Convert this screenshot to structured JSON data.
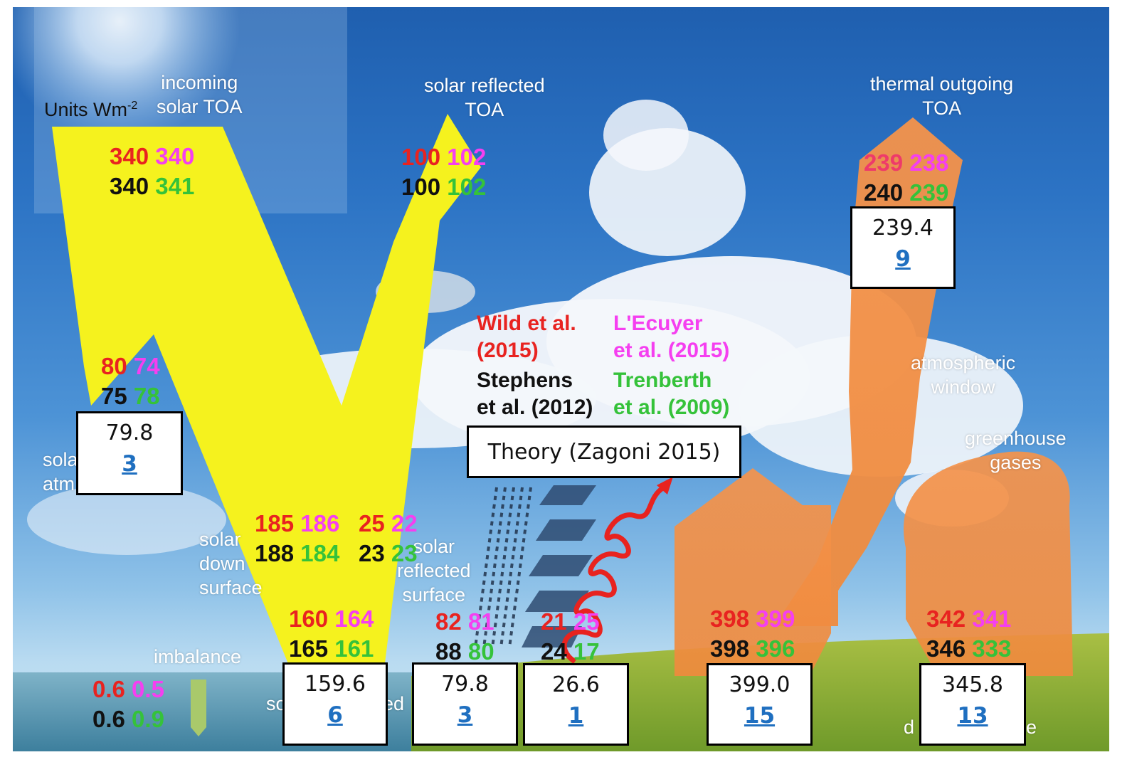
{
  "labels": {
    "units": "Units Wm",
    "units_sup": "-2",
    "incoming": "incoming\nsolar TOA",
    "solar_reflected_toa": "solar reflected\nTOA",
    "thermal_outgoing": "thermal outgoing\nTOA",
    "solar_atm": "sola\natm",
    "solar_down_surface": "solar\ndown\nsurface",
    "solar_reflected_surface": "solar\nreflected\nsurface",
    "imbalance": "imbalance",
    "atm_window": "atmospheric\nwindow",
    "greenhouse": "greenhouse\ngases",
    "bottom_so": "so",
    "bottom_ed": "ed",
    "bottom_d": "d",
    "bottom_e": "e"
  },
  "legend": {
    "wild": "Wild et al.\n(2015)",
    "lecuyer": "L'Ecuyer\net al. (2015)",
    "stephens": "Stephens\net al. (2012)",
    "trenberth": "Trenberth\net al. (2009)"
  },
  "theory_label": "Theory (Zagoni 2015)",
  "colors": {
    "wild": "#e82320",
    "lecuyer": "#f53ff0",
    "stephens": "#111111",
    "trenberth": "#35c23a",
    "solar_arrow": "#f5f21e",
    "thermal_arrow": "#f29048",
    "link": "#1f6fc0"
  },
  "flows": {
    "incoming": {
      "wild": "340",
      "lecuyer": "340",
      "stephens": "340",
      "trenberth": "341"
    },
    "reflected_toa": {
      "wild": "100",
      "lecuyer": "102",
      "stephens": "100",
      "trenberth": "102"
    },
    "thermal_toa": {
      "wild": "239",
      "lecuyer": "238",
      "stephens": "240",
      "trenberth": "239"
    },
    "solar_atm": {
      "wild": "80",
      "lecuyer": "74",
      "stephens": "75",
      "trenberth": "78"
    },
    "solar_down": {
      "wild": "185",
      "lecuyer": "186",
      "stephens": "188",
      "trenberth": "184"
    },
    "reflected_surface": {
      "wild": "25",
      "lecuyer": "22",
      "stephens": "23",
      "trenberth": "23"
    },
    "absorbed_surface": {
      "wild": "160",
      "lecuyer": "164",
      "stephens": "165",
      "trenberth": "161"
    },
    "evap": {
      "wild": "82",
      "lecuyer": "81",
      "stephens": "88",
      "trenberth": "80"
    },
    "sensible": {
      "wild": "21",
      "lecuyer": "25",
      "stephens": "24",
      "trenberth": "17"
    },
    "surface_up": {
      "wild": "398",
      "lecuyer": "399",
      "stephens": "398",
      "trenberth": "396"
    },
    "back_rad": {
      "wild": "342",
      "lecuyer": "341",
      "stephens": "346",
      "trenberth": "333"
    },
    "imbalance": {
      "wild": "0.6",
      "lecuyer": "0.5",
      "stephens": "0.6",
      "trenberth": "0.9"
    }
  },
  "theory_boxes": [
    {
      "id": "atm",
      "value": "79.8",
      "ref": "3"
    },
    {
      "id": "toa",
      "value": "239.4",
      "ref": "9"
    },
    {
      "id": "surface",
      "value": "159.6",
      "ref": "6"
    },
    {
      "id": "evap",
      "value": "79.8",
      "ref": "3"
    },
    {
      "id": "sensible",
      "value": "26.6",
      "ref": "1"
    },
    {
      "id": "upward",
      "value": "399.0",
      "ref": "15"
    },
    {
      "id": "back",
      "value": "345.8",
      "ref": "13"
    }
  ]
}
